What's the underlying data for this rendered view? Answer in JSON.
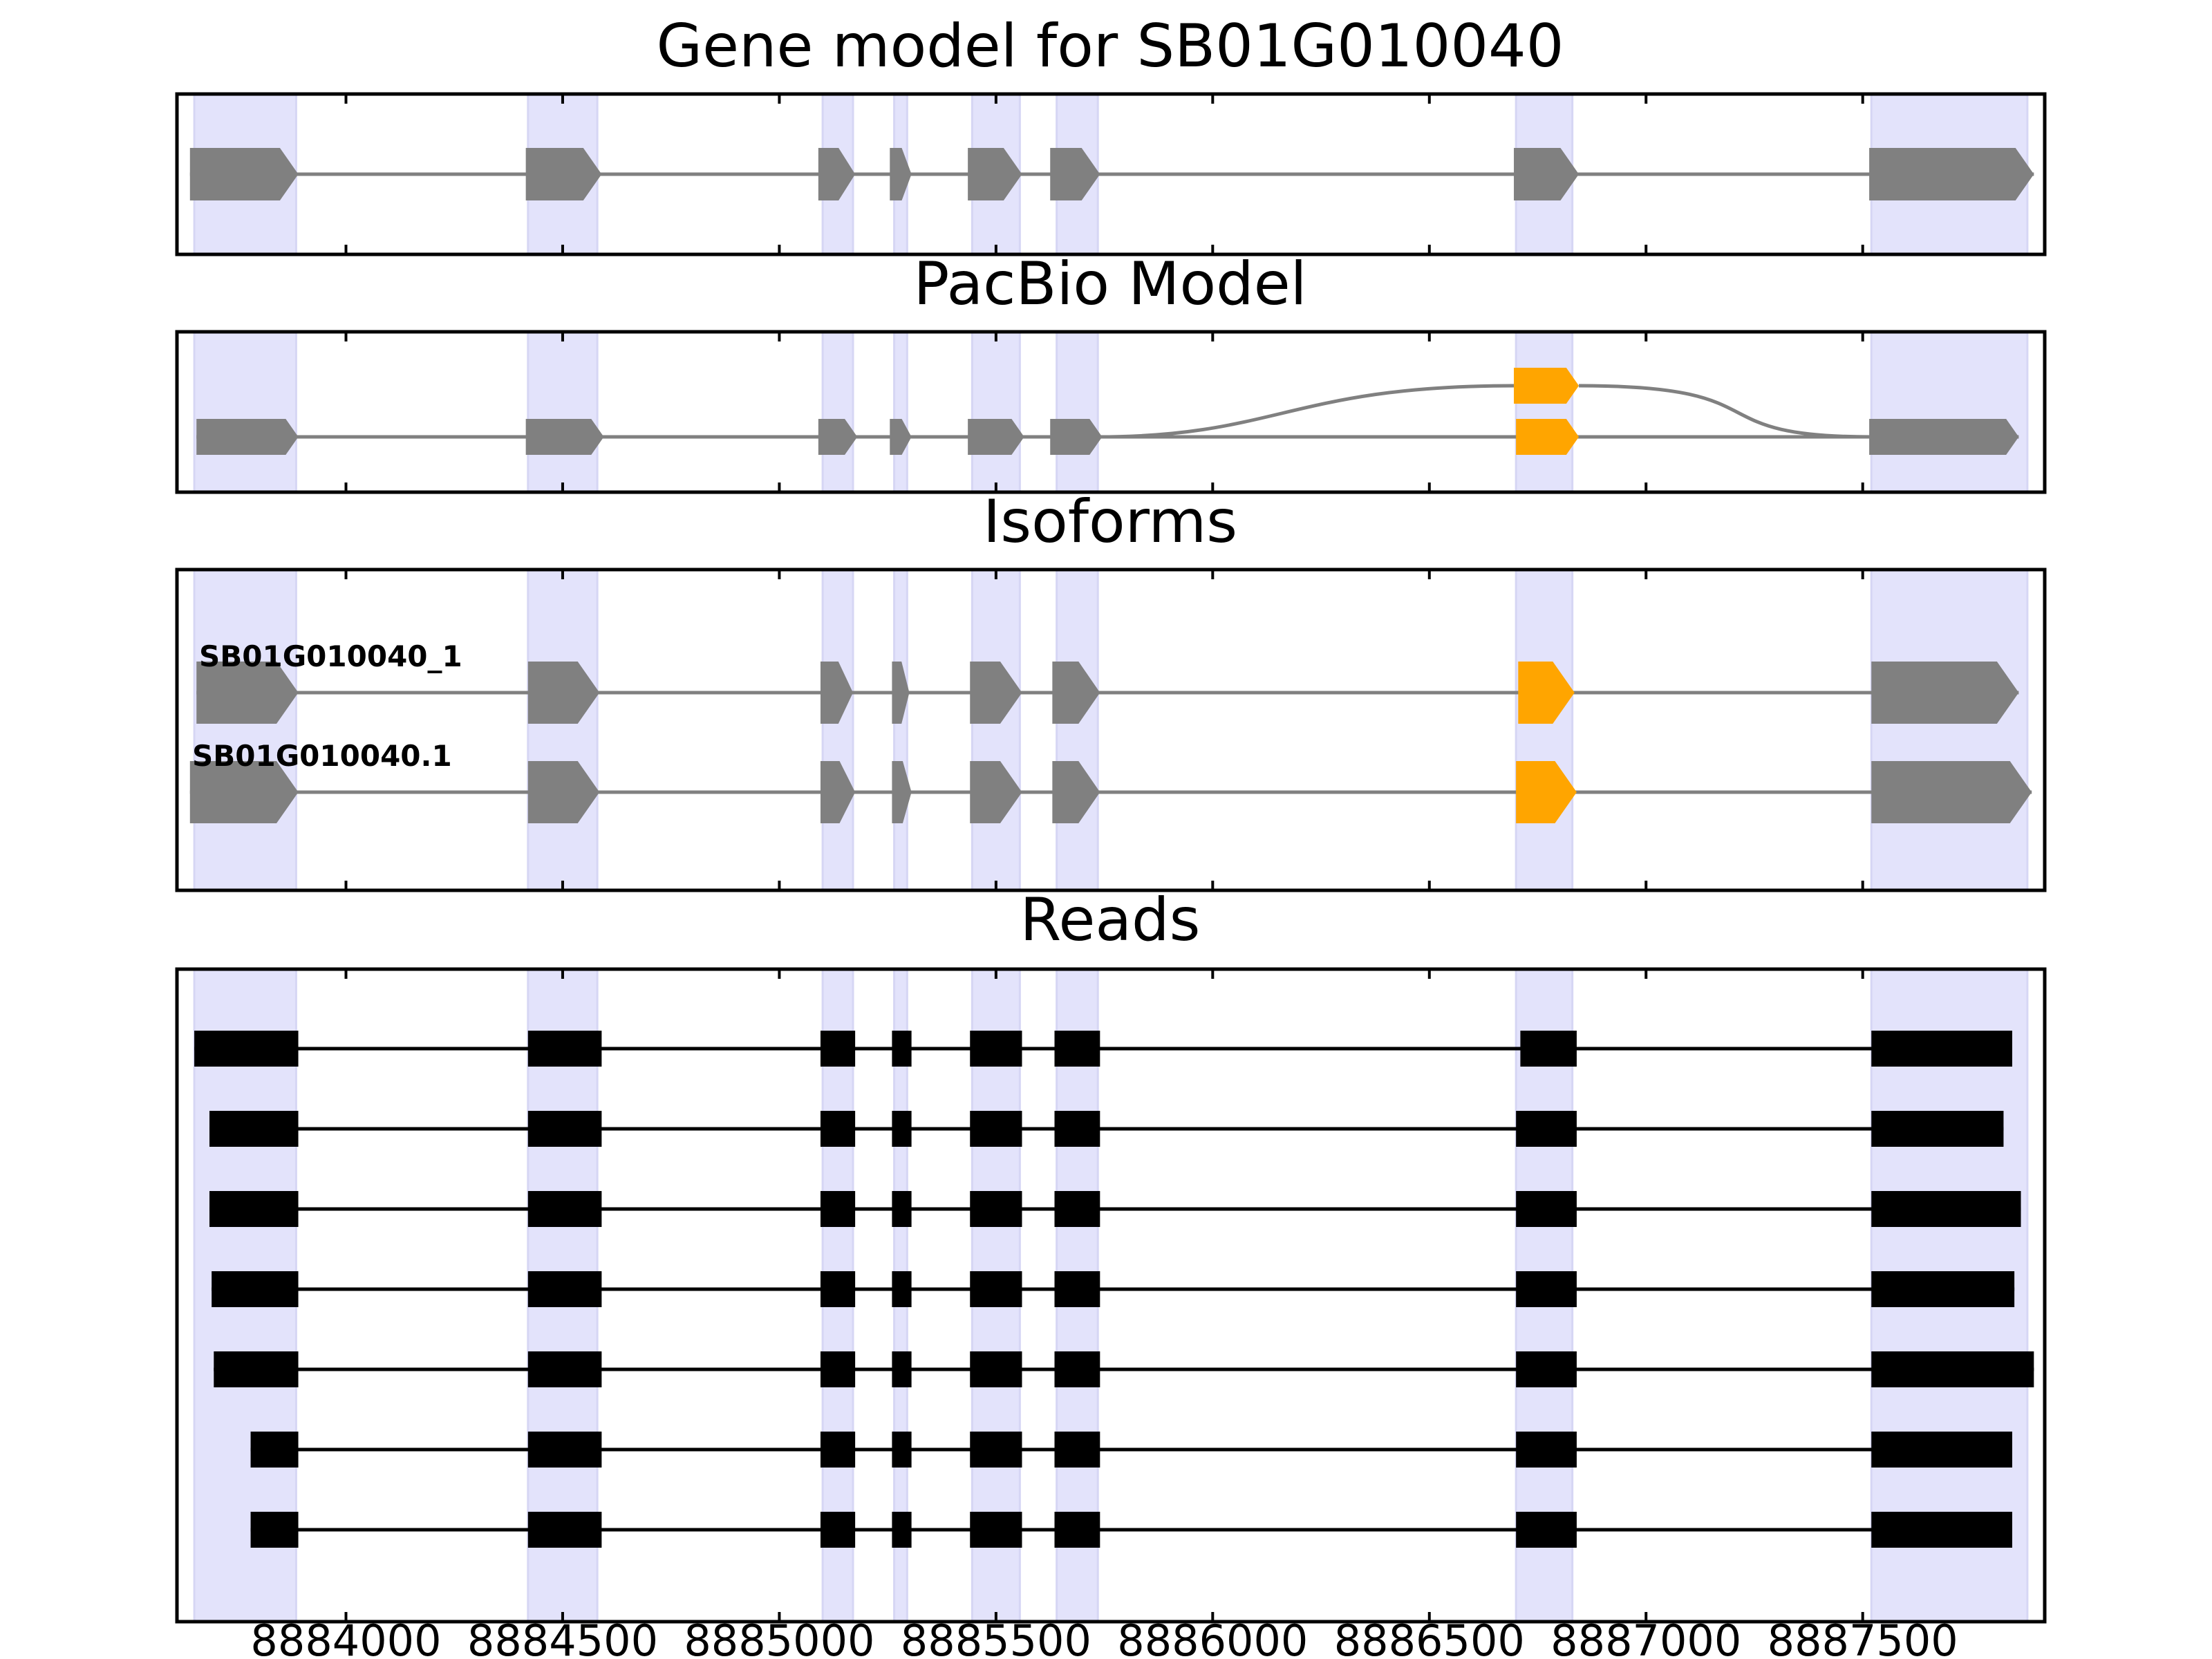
{
  "chart_data": {
    "type": "gene-structure",
    "xlim": [
      8883610,
      8887920
    ],
    "x_ticks": [
      8884000,
      8884500,
      8885000,
      8885500,
      8886000,
      8886500,
      8887000,
      8887500
    ],
    "x_tick_labels": [
      "8884000",
      "8884500",
      "8885000",
      "8885500",
      "8886000",
      "8886500",
      "8887000",
      "8887500"
    ],
    "exon_regions": [
      [
        8883650,
        8883885
      ],
      [
        8884420,
        8884580
      ],
      [
        8885100,
        8885170
      ],
      [
        8885265,
        8885295
      ],
      [
        8885445,
        8885555
      ],
      [
        8885640,
        8885735
      ],
      [
        8886700,
        8886830
      ],
      [
        8887520,
        8887880
      ]
    ],
    "colors": {
      "intron": "#808080",
      "exon": "#808080",
      "alt_exon": "#FFA500",
      "read": "#000000",
      "region": "#E3E3FB"
    },
    "panels": [
      {
        "title": "Gene model for SB01G010040",
        "tracks": [
          {
            "label": "",
            "exons": [
              [
                8883640,
                8883890,
                "gray"
              ],
              [
                8884415,
                8884590,
                "gray"
              ],
              [
                8885090,
                8885175,
                "gray"
              ],
              [
                8885255,
                8885305,
                "gray"
              ],
              [
                8885435,
                8885560,
                "gray"
              ],
              [
                8885625,
                8885740,
                "gray"
              ],
              [
                8886695,
                8886845,
                "gray"
              ],
              [
                8887515,
                8887895,
                "gray"
              ]
            ]
          }
        ]
      },
      {
        "title": "PacBio Model",
        "tracks": [
          {
            "label": "",
            "exons": [
              [
                8886695,
                8886845,
                "orange"
              ]
            ],
            "arc": [
              8885735,
              8887520
            ]
          },
          {
            "label": "",
            "exons": [
              [
                8883655,
                8883890,
                "gray"
              ],
              [
                8884415,
                8884595,
                "gray"
              ],
              [
                8885090,
                8885180,
                "gray"
              ],
              [
                8885255,
                8885305,
                "gray"
              ],
              [
                8885435,
                8885565,
                "gray"
              ],
              [
                8885625,
                8885745,
                "gray"
              ],
              [
                8886700,
                8886845,
                "orange"
              ],
              [
                8887515,
                8887860,
                "gray"
              ]
            ]
          }
        ]
      },
      {
        "title": "Isoforms",
        "tracks": [
          {
            "label": "SB01G010040_1",
            "exons": [
              [
                8883655,
                8883890,
                "gray"
              ],
              [
                8884420,
                8884585,
                "gray"
              ],
              [
                8885095,
                8885170,
                "gray"
              ],
              [
                8885260,
                8885300,
                "gray"
              ],
              [
                8885440,
                8885560,
                "gray"
              ],
              [
                8885630,
                8885740,
                "gray"
              ],
              [
                8886705,
                8886835,
                "orange"
              ],
              [
                8887520,
                8887860,
                "gray"
              ]
            ]
          },
          {
            "label": "SB01G010040.1",
            "exons": [
              [
                8883640,
                8883890,
                "gray"
              ],
              [
                8884420,
                8884585,
                "gray"
              ],
              [
                8885095,
                8885175,
                "gray"
              ],
              [
                8885260,
                8885305,
                "gray"
              ],
              [
                8885440,
                8885560,
                "gray"
              ],
              [
                8885630,
                8885740,
                "gray"
              ],
              [
                8886700,
                8886840,
                "orange"
              ],
              [
                8887520,
                8887890,
                "gray"
              ]
            ]
          }
        ]
      },
      {
        "title": "Reads",
        "tracks": [
          {
            "label": "",
            "exons": [
              [
                8883650,
                8883890
              ],
              [
                8884420,
                8884590
              ],
              [
                8885095,
                8885175
              ],
              [
                8885260,
                8885305
              ],
              [
                8885440,
                8885560
              ],
              [
                8885635,
                8885740
              ],
              [
                8886710,
                8886840
              ],
              [
                8887520,
                8887845
              ]
            ]
          },
          {
            "label": "",
            "exons": [
              [
                8883685,
                8883890
              ],
              [
                8884420,
                8884590
              ],
              [
                8885095,
                8885175
              ],
              [
                8885260,
                8885305
              ],
              [
                8885440,
                8885560
              ],
              [
                8885635,
                8885740
              ],
              [
                8886700,
                8886840
              ],
              [
                8887520,
                8887825
              ]
            ]
          },
          {
            "label": "",
            "exons": [
              [
                8883685,
                8883890
              ],
              [
                8884420,
                8884590
              ],
              [
                8885095,
                8885175
              ],
              [
                8885260,
                8885305
              ],
              [
                8885440,
                8885560
              ],
              [
                8885635,
                8885740
              ],
              [
                8886700,
                8886840
              ],
              [
                8887520,
                8887865
              ]
            ]
          },
          {
            "label": "",
            "exons": [
              [
                8883690,
                8883890
              ],
              [
                8884420,
                8884590
              ],
              [
                8885095,
                8885175
              ],
              [
                8885260,
                8885305
              ],
              [
                8885440,
                8885560
              ],
              [
                8885635,
                8885740
              ],
              [
                8886700,
                8886840
              ],
              [
                8887520,
                8887850
              ]
            ]
          },
          {
            "label": "",
            "exons": [
              [
                8883695,
                8883890
              ],
              [
                8884420,
                8884590
              ],
              [
                8885095,
                8885175
              ],
              [
                8885260,
                8885305
              ],
              [
                8885440,
                8885560
              ],
              [
                8885635,
                8885740
              ],
              [
                8886700,
                8886840
              ],
              [
                8887520,
                8887895
              ]
            ]
          },
          {
            "label": "",
            "exons": [
              [
                8883780,
                8883890
              ],
              [
                8884420,
                8884590
              ],
              [
                8885095,
                8885175
              ],
              [
                8885260,
                8885305
              ],
              [
                8885440,
                8885560
              ],
              [
                8885635,
                8885740
              ],
              [
                8886700,
                8886840
              ],
              [
                8887520,
                8887845
              ]
            ]
          },
          {
            "label": "",
            "exons": [
              [
                8883780,
                8883890
              ],
              [
                8884420,
                8884590
              ],
              [
                8885095,
                8885175
              ],
              [
                8885260,
                8885305
              ],
              [
                8885440,
                8885560
              ],
              [
                8885635,
                8885740
              ],
              [
                8886700,
                8886840
              ],
              [
                8887520,
                8887845
              ]
            ]
          }
        ]
      }
    ]
  }
}
